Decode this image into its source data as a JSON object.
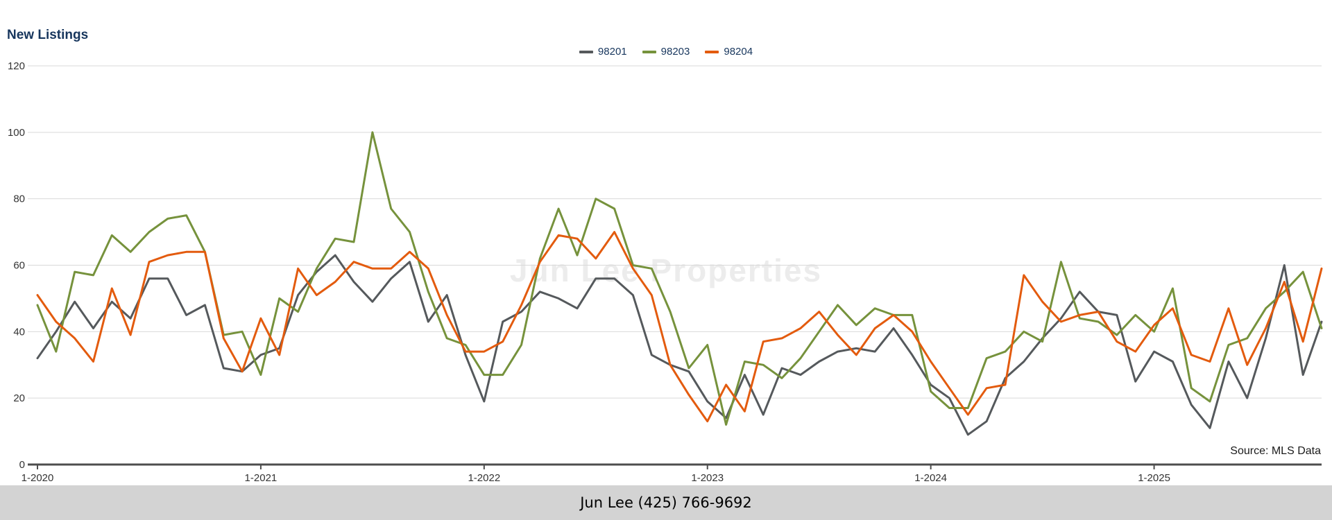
{
  "page": {
    "title": "New Listings",
    "watermark": "Jun Lee Properties",
    "source_note": "Source: MLS Data",
    "footer_text": "Jun Lee (425) 766-9692"
  },
  "colors": {
    "title_text": "#17365d",
    "legend_text": "#17365d",
    "gridline": "#d9d9d9",
    "axis_line": "#4d4d4d",
    "axis_label": "#333333",
    "watermark_text": "#ececec",
    "footer_background": "#d3d3d3",
    "series_98201": "#55595c",
    "series_98203": "#76923c",
    "series_98204": "#e35b0e"
  },
  "chart_data": {
    "type": "line",
    "title": "New Listings",
    "xlabel": "",
    "ylabel": "",
    "ylim": [
      0,
      120
    ],
    "y_ticks": [
      0,
      20,
      40,
      60,
      80,
      100,
      120
    ],
    "grid": true,
    "legend_position": "top-center",
    "x_unit": "month",
    "x_range_note": "monthly points from 1-2020 through 10-2025",
    "x_tick_labels": [
      "1-2020",
      "1-2021",
      "1-2022",
      "1-2023",
      "1-2024",
      "1-2025"
    ],
    "x_tick_indices": [
      0,
      12,
      24,
      36,
      48,
      60
    ],
    "series": [
      {
        "name": "98201",
        "color": "#55595c",
        "values": [
          32,
          40,
          49,
          41,
          49,
          44,
          56,
          56,
          45,
          48,
          29,
          28,
          33,
          35,
          51,
          58,
          63,
          55,
          49,
          56,
          61,
          43,
          51,
          33,
          19,
          43,
          46,
          52,
          50,
          47,
          56,
          56,
          51,
          33,
          30,
          28,
          19,
          14,
          27,
          15,
          29,
          27,
          31,
          34,
          35,
          34,
          41,
          33,
          24,
          20,
          9,
          13,
          26,
          31,
          38,
          44,
          52,
          46,
          45,
          25,
          34,
          31,
          18,
          11,
          31,
          20,
          38,
          60,
          27,
          43
        ]
      },
      {
        "name": "98203",
        "color": "#76923c",
        "values": [
          48,
          34,
          58,
          57,
          69,
          64,
          70,
          74,
          75,
          64,
          39,
          40,
          27,
          50,
          46,
          59,
          68,
          67,
          100,
          77,
          70,
          52,
          38,
          36,
          27,
          27,
          36,
          62,
          77,
          63,
          80,
          77,
          60,
          59,
          46,
          29,
          36,
          12,
          31,
          30,
          26,
          32,
          40,
          48,
          42,
          47,
          45,
          45,
          22,
          17,
          17,
          32,
          34,
          40,
          37,
          61,
          44,
          43,
          39,
          45,
          40,
          53,
          23,
          19,
          36,
          38,
          47,
          52,
          58,
          41
        ]
      },
      {
        "name": "98204",
        "color": "#e35b0e",
        "values": [
          51,
          43,
          38,
          31,
          53,
          39,
          61,
          63,
          64,
          64,
          38,
          28,
          44,
          33,
          59,
          51,
          55,
          61,
          59,
          59,
          64,
          59,
          45,
          34,
          34,
          37,
          48,
          61,
          69,
          68,
          62,
          70,
          59,
          51,
          30,
          21,
          13,
          24,
          16,
          37,
          38,
          41,
          46,
          39,
          33,
          41,
          45,
          40,
          31,
          23,
          15,
          23,
          24,
          57,
          49,
          43,
          45,
          46,
          37,
          34,
          42,
          47,
          33,
          31,
          47,
          30,
          41,
          55,
          37,
          59
        ]
      }
    ]
  }
}
